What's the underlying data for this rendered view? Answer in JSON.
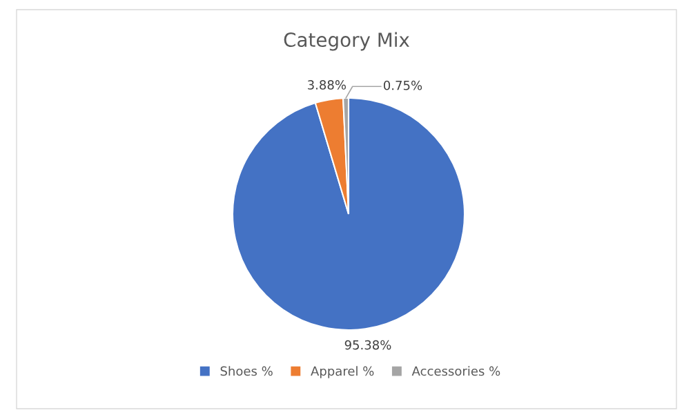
{
  "chart_data": {
    "type": "pie",
    "title": "Category Mix",
    "categories": [
      "Shoes %",
      "Apparel %",
      "Accessories %"
    ],
    "values": [
      95.38,
      3.88,
      0.75
    ],
    "colors": [
      "#4472c4",
      "#ed7d31",
      "#a5a5a5"
    ],
    "value_labels": [
      "95.38%",
      "3.88%",
      "0.75%"
    ],
    "legend": "bottom"
  }
}
